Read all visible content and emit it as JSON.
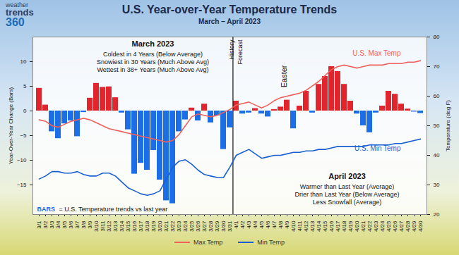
{
  "chart_data": {
    "type": "bar",
    "title": "U.S. Year-over-Year Temperature Trends",
    "subtitle": "March – April 2023",
    "logo": [
      "weather",
      "trends",
      "360"
    ],
    "ylabel": "Year-Over-Year Change (Bars)",
    "y2label": "Temperature (deg F)",
    "categories": [
      "3/1",
      "3/2",
      "3/3",
      "3/4",
      "3/5",
      "3/6",
      "3/7",
      "3/8",
      "3/9",
      "3/10",
      "3/11",
      "3/12",
      "3/13",
      "3/14",
      "3/15",
      "3/16",
      "3/17",
      "3/18",
      "3/19",
      "3/20",
      "3/21",
      "3/22",
      "3/23",
      "3/24",
      "3/25",
      "3/26",
      "3/27",
      "3/28",
      "3/29",
      "3/30",
      "3/31",
      "4/1",
      "4/2",
      "4/3",
      "4/4",
      "4/5",
      "4/6",
      "4/7",
      "4/8",
      "4/9",
      "4/10",
      "4/11",
      "4/12",
      "4/13",
      "4/14",
      "4/15",
      "4/16",
      "4/17",
      "4/18",
      "4/19",
      "4/20",
      "4/21",
      "4/22",
      "4/23",
      "4/24",
      "4/25",
      "4/26",
      "4/27",
      "4/28",
      "4/29",
      "4/30"
    ],
    "values": [
      4.6,
      1.2,
      -4.2,
      -5.6,
      -2.6,
      -2.0,
      -5.2,
      -0.3,
      2.6,
      5.6,
      4.8,
      4.9,
      2.7,
      -0.4,
      -3.8,
      -12.8,
      -10.6,
      -12.0,
      -8.0,
      -14.0,
      -18.2,
      -18.8,
      -4.2,
      -1.8,
      0.6,
      -2.0,
      1.4,
      -2.4,
      -1.0,
      -7.8,
      -3.4,
      2.0,
      -0.6,
      -0.4,
      0.5,
      -0.6,
      -1.2,
      0.3,
      0.8,
      2.2,
      -3.6,
      1.0,
      4.0,
      -0.4,
      5.4,
      7.0,
      9.0,
      8.0,
      5.4,
      2.0,
      -0.6,
      -3.0,
      -4.4,
      -0.4,
      1.0,
      4.0,
      3.4,
      1.4,
      0.4,
      -0.2,
      -0.5
    ],
    "colors": [
      "#e0262c",
      "#e0262c",
      "#1b6ee6",
      "#1b6ee6",
      "#1b6ee6",
      "#1b6ee6",
      "#1b6ee6",
      "#1b6ee6",
      "#e0262c",
      "#e0262c",
      "#e0262c",
      "#e0262c",
      "#e0262c",
      "#1b6ee6",
      "#1b6ee6",
      "#1b6ee6",
      "#1b6ee6",
      "#1b6ee6",
      "#1b6ee6",
      "#1b6ee6",
      "#1b6ee6",
      "#1b6ee6",
      "#1b6ee6",
      "#1b6ee6",
      "#e0262c",
      "#1b6ee6",
      "#e0262c",
      "#1b6ee6",
      "#1b6ee6",
      "#1b6ee6",
      "#1b6ee6",
      "#e0262c",
      "#1b6ee6",
      "#1b6ee6",
      "#e0262c",
      "#1b6ee6",
      "#1b6ee6",
      "#e0262c",
      "#e0262c",
      "#e0262c",
      "#1b6ee6",
      "#e0262c",
      "#e0262c",
      "#1b6ee6",
      "#e0262c",
      "#e0262c",
      "#e0262c",
      "#e0262c",
      "#e0262c",
      "#e0262c",
      "#1b6ee6",
      "#1b6ee6",
      "#1b6ee6",
      "#1b6ee6",
      "#e0262c",
      "#e0262c",
      "#e0262c",
      "#e0262c",
      "#e0262c",
      "#1b6ee6",
      "#1b6ee6"
    ],
    "ylim": [
      -21,
      15
    ],
    "yticks": [
      -15,
      -10,
      -5,
      0,
      5,
      10
    ],
    "y2lim": [
      20,
      80
    ],
    "y2ticks": [
      20,
      30,
      40,
      50,
      60,
      70,
      80
    ],
    "grid": false,
    "legend": "bottom",
    "series": [
      {
        "name": "Max Temp",
        "line_label": "U.S. Max Temp",
        "type": "line",
        "axis": "y2",
        "color": "#f0605a",
        "values": [
          52,
          51.5,
          50,
          49.5,
          50.5,
          51.5,
          52,
          52.5,
          52,
          51,
          50,
          49,
          48.5,
          48,
          47.5,
          47,
          46.5,
          46,
          45.5,
          45,
          44.5,
          45,
          47,
          50,
          53,
          54,
          53.5,
          53,
          53.5,
          54.5,
          55.5,
          57,
          57.5,
          58,
          57,
          56,
          57,
          58.5,
          59.5,
          60,
          60.5,
          61,
          62,
          63.5,
          65,
          67,
          69,
          70,
          70.5,
          70,
          69.5,
          70,
          70.5,
          70.5,
          70.5,
          71,
          71,
          71,
          71.5,
          71.5,
          72
        ]
      },
      {
        "name": "Min Temp",
        "line_label": "U.S. Min Temp",
        "type": "line",
        "axis": "y2",
        "color": "#1a5fd0",
        "values": [
          32,
          33,
          34.5,
          34.5,
          34,
          34,
          34.5,
          33.5,
          33,
          33,
          34,
          34,
          33,
          31,
          29,
          28,
          27,
          26.5,
          27,
          28,
          32,
          36,
          38,
          38.5,
          37,
          35,
          33.5,
          33,
          32.5,
          32.5,
          36,
          40,
          41,
          42,
          40.5,
          39,
          39.5,
          40,
          40,
          40.5,
          41,
          41,
          41.5,
          41.5,
          42,
          42,
          42.5,
          43,
          43,
          43,
          43,
          43,
          43.5,
          43.5,
          43.5,
          43.5,
          44,
          44,
          44.5,
          45,
          45.5
        ]
      }
    ],
    "march_note": {
      "title": "March 2023",
      "lines": [
        "Coldest in 4 Years (Below Average)",
        "Snowiest in 30 Years (Much Above Avg)",
        "Wettest in 38+ Years (Much Above Avg)"
      ]
    },
    "april_note": {
      "title": "April 2023",
      "lines": [
        "Warmer than Last Year (Average)",
        "Drier than Last Year (Below Average)",
        "Less Snowfall (Average)"
      ]
    },
    "bars_note": {
      "key": "BARS",
      "text": "= U.S. Temperature trends vs last year"
    },
    "events": [
      {
        "x": "4/9",
        "label": "Easter"
      }
    ],
    "history_forecast": {
      "x": "4/1",
      "labels": [
        "History",
        "Forecast"
      ]
    }
  }
}
